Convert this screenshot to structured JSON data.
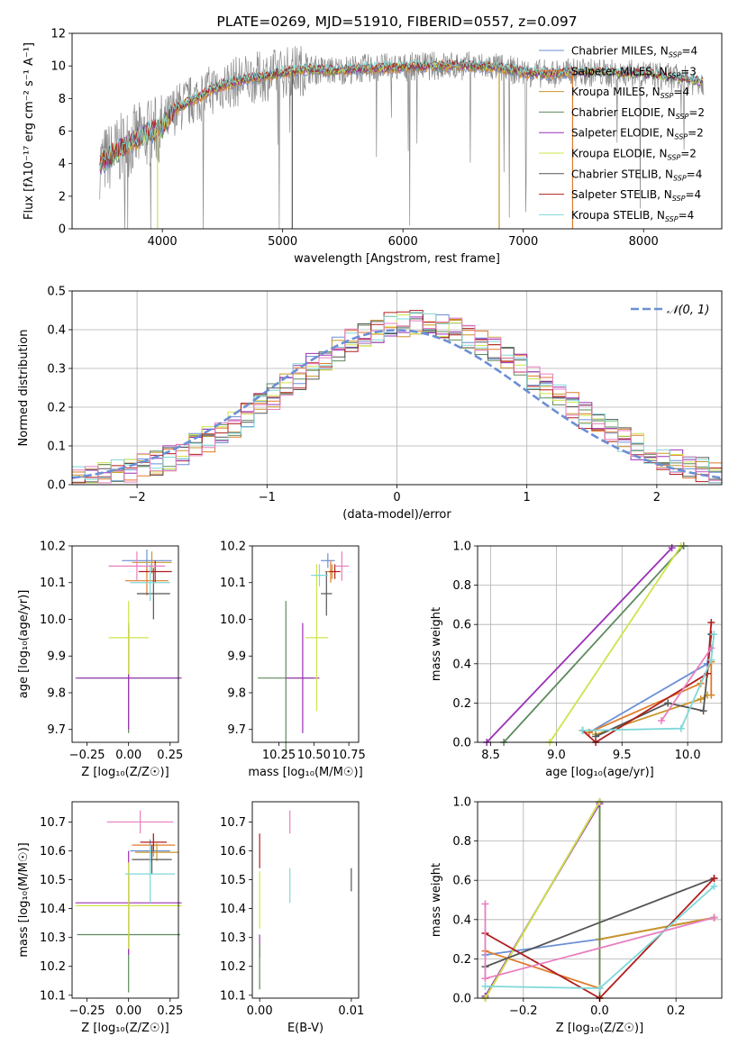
{
  "palette": {
    "c_miles": "#6b8fd6",
    "s_miles": "#e07b2a",
    "k_miles": "#c8962a",
    "c_elodie": "#5e8a5e",
    "s_elodie": "#9b30b5",
    "k_elodie": "#cfe44a",
    "c_stelib": "#555555",
    "s_stelib": "#b01e1e",
    "k_stelib": "#7fd8d8",
    "pink": "#e87fc0",
    "gauss": "#6b8fd6",
    "grid": "#b0b0b0"
  },
  "chart_data": [
    {
      "id": "spectrum",
      "type": "line",
      "title": "PLATE=0269, MJD=51910, FIBERID=0557, z=0.097",
      "xlabel": "wavelength [Angstrom, rest frame]",
      "ylabel": "Flux [fλ10⁻¹⁷ erg cm⁻² s⁻¹ A⁻¹]",
      "xlim": [
        3250,
        8650
      ],
      "ylim": [
        0,
        12
      ],
      "xticks": [
        4000,
        5000,
        6000,
        7000,
        8000
      ],
      "yticks": [
        0,
        2,
        4,
        6,
        8,
        10,
        12
      ],
      "grid": false,
      "legend_position": "top-right",
      "data_range": [
        3480,
        8500
      ],
      "continuum": {
        "x": [
          3480,
          3600,
          3700,
          3800,
          3900,
          4000,
          4100,
          4200,
          4300,
          4400,
          4500,
          4600,
          4700,
          4800,
          5000,
          5200,
          5400,
          5600,
          5800,
          6000,
          6200,
          6400,
          6600,
          6800,
          7000,
          7200,
          7400,
          7600,
          7800,
          8000,
          8200,
          8500
        ],
        "y": [
          4.0,
          4.6,
          5.2,
          5.6,
          5.9,
          6.2,
          7.3,
          7.7,
          8.1,
          8.5,
          8.8,
          9.0,
          9.2,
          9.3,
          9.6,
          9.8,
          9.7,
          9.8,
          9.9,
          9.9,
          10.0,
          10.0,
          10.0,
          9.9,
          9.6,
          9.5,
          9.6,
          9.6,
          9.5,
          9.5,
          9.3,
          9.0
        ]
      },
      "legend": [
        {
          "label": "Chabrier MILES, N",
          "sub": "SSP",
          "suffix": "=4",
          "color": "c_miles"
        },
        {
          "label": "Salpeter MILES, N",
          "sub": "SSP",
          "suffix": "=3",
          "color": "s_miles"
        },
        {
          "label": "Kroupa MILES, N",
          "sub": "SSP",
          "suffix": "=4",
          "color": "k_miles"
        },
        {
          "label": "Chabrier ELODIE, N",
          "sub": "SSP",
          "suffix": "=2",
          "color": "c_elodie"
        },
        {
          "label": "Salpeter ELODIE, N",
          "sub": "SSP",
          "suffix": "=2",
          "color": "s_elodie"
        },
        {
          "label": "Kroupa ELODIE, N",
          "sub": "SSP",
          "suffix": "=2",
          "color": "k_elodie"
        },
        {
          "label": "Chabrier STELIB, N",
          "sub": "SSP",
          "suffix": "=4",
          "color": "c_stelib"
        },
        {
          "label": "Salpeter STELIB, N",
          "sub": "SSP",
          "suffix": "=4",
          "color": "s_stelib"
        },
        {
          "label": "Kroupa STELIB, N",
          "sub": "SSP",
          "suffix": "=4",
          "color": "k_stelib"
        }
      ]
    },
    {
      "id": "residuals",
      "type": "bar",
      "xlabel": "(data-model)/error",
      "ylabel": "Normed distribution",
      "xlim": [
        -2.5,
        2.5
      ],
      "ylim": [
        0,
        0.5
      ],
      "xticks": [
        -2,
        -1,
        0,
        1,
        2
      ],
      "yticks": [
        0.0,
        0.1,
        0.2,
        0.3,
        0.4,
        0.5
      ],
      "grid": true,
      "legend": [
        {
          "label": "𝒩(0, 1)",
          "color": "gauss"
        }
      ],
      "bin_width": 0.1
    },
    {
      "id": "age_vs_Z",
      "type": "scatter",
      "xlabel": "Z [log₁₀(Z/Z☉)]",
      "ylabel": "age  [log₁₀(age/yr)]",
      "xlim": [
        -0.34,
        0.3
      ],
      "ylim": [
        9.665,
        10.2
      ],
      "xticks": [
        -0.25,
        0.0,
        0.25
      ],
      "yticks": [
        9.7,
        9.8,
        9.9,
        10.0,
        10.1,
        10.2
      ],
      "points": [
        {
          "x": 0.11,
          "xerr": 0.15,
          "y": 10.16,
          "yerr": 0.03,
          "color": "c_miles"
        },
        {
          "x": 0.11,
          "xerr": 0.13,
          "y": 10.105,
          "yerr": 0.04,
          "color": "s_miles"
        },
        {
          "x": 0.14,
          "xerr": 0.12,
          "y": 10.155,
          "yerr": 0.03,
          "color": "k_miles"
        },
        {
          "x": 0.0,
          "xerr": 0.3,
          "y": 9.84,
          "yerr": 0.15,
          "color": "c_elodie"
        },
        {
          "x": 0.0,
          "xerr": 0.32,
          "y": 9.84,
          "yerr": 0.14,
          "color": "s_elodie"
        },
        {
          "x": 0.0,
          "xerr": 0.12,
          "y": 9.95,
          "yerr": 0.1,
          "color": "k_elodie"
        },
        {
          "x": 0.15,
          "xerr": 0.1,
          "y": 10.07,
          "yerr": 0.07,
          "color": "c_stelib"
        },
        {
          "x": 0.16,
          "xerr": 0.1,
          "y": 10.13,
          "yerr": 0.03,
          "color": "s_stelib"
        },
        {
          "x": 0.13,
          "xerr": 0.12,
          "y": 10.1,
          "yerr": 0.05,
          "color": "k_stelib"
        },
        {
          "x": 0.05,
          "xerr": 0.17,
          "y": 10.145,
          "yerr": 0.04,
          "color": "pink"
        }
      ]
    },
    {
      "id": "age_vs_mass",
      "type": "scatter",
      "xlabel": "mass [log₁₀(M/M☉)]",
      "ylabel": "",
      "xlim": [
        10.06,
        10.82
      ],
      "ylim": [
        9.665,
        10.2
      ],
      "xticks": [
        10.25,
        10.5,
        10.75
      ],
      "yticks": [
        9.7,
        9.8,
        9.9,
        10.0,
        10.1,
        10.2
      ],
      "points": [
        {
          "x": 10.6,
          "xerr": 0.05,
          "y": 10.16,
          "yerr": 0.02,
          "color": "c_miles"
        },
        {
          "x": 10.62,
          "xerr": 0.04,
          "y": 10.13,
          "yerr": 0.03,
          "color": "s_miles"
        },
        {
          "x": 10.63,
          "xerr": 0.03,
          "y": 10.13,
          "yerr": 0.02,
          "color": "k_miles"
        },
        {
          "x": 10.3,
          "xerr": 0.2,
          "y": 9.84,
          "yerr": 0.21,
          "color": "c_elodie"
        },
        {
          "x": 10.42,
          "xerr": 0.12,
          "y": 9.84,
          "yerr": 0.15,
          "color": "s_elodie"
        },
        {
          "x": 10.52,
          "xerr": 0.08,
          "y": 9.95,
          "yerr": 0.2,
          "color": "k_elodie"
        },
        {
          "x": 10.59,
          "xerr": 0.04,
          "y": 10.07,
          "yerr": 0.06,
          "color": "c_stelib"
        },
        {
          "x": 10.65,
          "xerr": 0.04,
          "y": 10.13,
          "yerr": 0.02,
          "color": "s_stelib"
        },
        {
          "x": 10.54,
          "xerr": 0.06,
          "y": 10.12,
          "yerr": 0.03,
          "color": "k_stelib"
        },
        {
          "x": 10.7,
          "xerr": 0.05,
          "y": 10.145,
          "yerr": 0.04,
          "color": "pink"
        }
      ]
    },
    {
      "id": "weight_vs_age",
      "type": "line",
      "xlabel": "age  [log₁₀(age/yr)]",
      "ylabel": "mass weight",
      "xlim": [
        8.4,
        10.26
      ],
      "ylim": [
        0,
        1.0
      ],
      "xticks": [
        8.5,
        9.0,
        9.5,
        10.0
      ],
      "yticks": [
        0.0,
        0.2,
        0.4,
        0.6,
        0.8,
        1.0
      ],
      "grid": true,
      "series": [
        {
          "color": "c_miles",
          "x": [
            9.25,
            10.15,
            10.18
          ],
          "y": [
            0.05,
            0.4,
            0.55
          ]
        },
        {
          "color": "s_miles",
          "x": [
            9.25,
            10.1,
            10.18,
            10.18
          ],
          "y": [
            0.05,
            0.3,
            0.41,
            0.24
          ]
        },
        {
          "color": "k_miles",
          "x": [
            9.3,
            10.1,
            10.15
          ],
          "y": [
            0.04,
            0.22,
            0.24
          ]
        },
        {
          "color": "c_elodie",
          "x": [
            8.6,
            9.97
          ],
          "y": [
            0.0,
            1.0
          ]
        },
        {
          "color": "s_elodie",
          "x": [
            8.47,
            9.88
          ],
          "y": [
            0.0,
            0.99
          ]
        },
        {
          "color": "k_elodie",
          "x": [
            8.95,
            9.95
          ],
          "y": [
            0.0,
            1.0
          ]
        },
        {
          "color": "c_stelib",
          "x": [
            9.3,
            9.85,
            10.12,
            10.18
          ],
          "y": [
            0.03,
            0.2,
            0.16,
            0.55
          ]
        },
        {
          "color": "s_stelib",
          "x": [
            9.2,
            9.3,
            10.15,
            10.18
          ],
          "y": [
            0.06,
            0.0,
            0.35,
            0.61
          ]
        },
        {
          "color": "k_stelib",
          "x": [
            9.2,
            9.95,
            10.18,
            10.2
          ],
          "y": [
            0.06,
            0.07,
            0.42,
            0.55
          ]
        },
        {
          "color": "pink",
          "x": [
            9.8,
            10.18
          ],
          "y": [
            0.11,
            0.48
          ]
        }
      ]
    },
    {
      "id": "mass_vs_Z",
      "type": "scatter",
      "xlabel": "Z [log₁₀(Z/Z☉)]",
      "ylabel": "mass [log₁₀(M/M☉)]",
      "xlim": [
        -0.34,
        0.3
      ],
      "ylim": [
        10.09,
        10.77
      ],
      "xticks": [
        -0.25,
        0.0,
        0.25
      ],
      "yticks": [
        10.1,
        10.2,
        10.3,
        10.4,
        10.5,
        10.6,
        10.7
      ],
      "points": [
        {
          "x": 0.13,
          "xerr": 0.12,
          "y": 10.6,
          "yerr": 0.04,
          "color": "c_miles"
        },
        {
          "x": 0.15,
          "xerr": 0.13,
          "y": 10.62,
          "yerr": 0.04,
          "color": "s_miles"
        },
        {
          "x": 0.17,
          "xerr": 0.13,
          "y": 10.595,
          "yerr": 0.03,
          "color": "k_miles"
        },
        {
          "x": 0.0,
          "xerr": 0.31,
          "y": 10.31,
          "yerr": 0.2,
          "color": "c_elodie"
        },
        {
          "x": 0.0,
          "xerr": 0.32,
          "y": 10.42,
          "yerr": 0.18,
          "color": "s_elodie"
        },
        {
          "x": 0.0,
          "xerr": 0.32,
          "y": 10.41,
          "yerr": 0.15,
          "color": "k_elodie"
        },
        {
          "x": 0.14,
          "xerr": 0.12,
          "y": 10.57,
          "yerr": 0.05,
          "color": "c_stelib"
        },
        {
          "x": 0.15,
          "xerr": 0.08,
          "y": 10.63,
          "yerr": 0.03,
          "color": "s_stelib"
        },
        {
          "x": 0.13,
          "xerr": 0.15,
          "y": 10.52,
          "yerr": 0.1,
          "color": "k_stelib"
        },
        {
          "x": 0.07,
          "xerr": 0.2,
          "y": 10.7,
          "yerr": 0.04,
          "color": "pink"
        }
      ]
    },
    {
      "id": "mass_vs_ebv",
      "type": "scatter",
      "xlabel": "E(B-V)",
      "ylabel": "",
      "xlim": [
        -0.0008,
        0.0108
      ],
      "ylim": [
        10.09,
        10.77
      ],
      "xticks": [
        0.0,
        0.01
      ],
      "yticks": [
        10.1,
        10.2,
        10.3,
        10.4,
        10.5,
        10.6,
        10.7
      ],
      "points": [
        {
          "x": 0.0,
          "y": 10.6,
          "yerr": 0.06,
          "color": "s_stelib"
        },
        {
          "x": 0.0,
          "y": 10.43,
          "yerr": 0.1,
          "color": "k_elodie"
        },
        {
          "x": 0.0,
          "y": 10.27,
          "yerr": 0.04,
          "color": "s_elodie"
        },
        {
          "x": 0.0,
          "y": 10.2,
          "yerr": 0.08,
          "color": "c_elodie"
        },
        {
          "x": 0.0033,
          "y": 10.7,
          "yerr": 0.04,
          "color": "pink"
        },
        {
          "x": 0.0033,
          "y": 10.48,
          "yerr": 0.06,
          "color": "k_stelib"
        },
        {
          "x": 0.01,
          "y": 10.5,
          "yerr": 0.04,
          "color": "c_stelib"
        }
      ]
    },
    {
      "id": "weight_vs_Z",
      "type": "line",
      "xlabel": "Z [log₁₀(Z/Z☉)]",
      "ylabel": "mass weight",
      "xlim": [
        -0.32,
        0.32
      ],
      "ylim": [
        0,
        1.0
      ],
      "xticks": [
        -0.2,
        0.0,
        0.2
      ],
      "yticks": [
        0.0,
        0.2,
        0.4,
        0.6,
        0.8,
        1.0
      ],
      "grid": true,
      "series": [
        {
          "color": "c_miles",
          "x": [
            -0.3,
            0.0,
            0.3
          ],
          "y": [
            0.22,
            0.3,
            0.41
          ]
        },
        {
          "color": "s_miles",
          "x": [
            -0.3,
            0.0,
            0.0,
            0.3
          ],
          "y": [
            0.24,
            0.05,
            0.3,
            0.41
          ]
        },
        {
          "color": "k_miles",
          "x": [
            -0.3,
            0.0,
            0.0,
            0.3
          ],
          "y": [
            0.0,
            1.0,
            0.3,
            0.41
          ]
        },
        {
          "color": "c_elodie",
          "x": [
            -0.3,
            0.0,
            0.0
          ],
          "y": [
            0.0,
            1.0,
            0.0
          ]
        },
        {
          "color": "s_elodie",
          "x": [
            -0.3,
            0.0
          ],
          "y": [
            0.01,
            0.99
          ]
        },
        {
          "color": "k_elodie",
          "x": [
            -0.3,
            0.0
          ],
          "y": [
            0.0,
            1.0
          ]
        },
        {
          "color": "c_stelib",
          "x": [
            -0.3,
            0.3
          ],
          "y": [
            0.16,
            0.61
          ]
        },
        {
          "color": "s_stelib",
          "x": [
            -0.3,
            0.0,
            0.3
          ],
          "y": [
            0.33,
            0.0,
            0.61
          ]
        },
        {
          "color": "k_stelib",
          "x": [
            -0.3,
            0.0,
            0.3
          ],
          "y": [
            0.06,
            0.05,
            0.57
          ]
        },
        {
          "color": "pink",
          "x": [
            -0.3,
            -0.3,
            0.3
          ],
          "y": [
            0.48,
            0.1,
            0.41
          ]
        }
      ]
    }
  ]
}
